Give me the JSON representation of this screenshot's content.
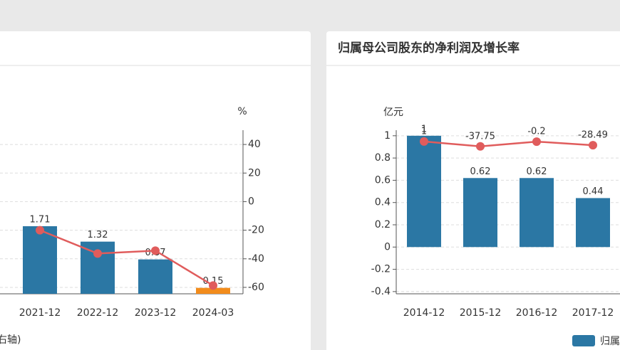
{
  "chart_data": [
    {
      "type": "bar_line",
      "y2label": "%",
      "categories": [
        "2021-12",
        "2022-12",
        "2023-12",
        "2024-03"
      ],
      "series": [
        {
          "color": "#2b77a4",
          "colors": [
            "#2b77a4",
            "#2b77a4",
            "#2b77a4",
            "#f28c1c"
          ],
          "values": [
            1.71,
            1.32,
            0.87,
            0.15
          ]
        },
        {
          "color": "#e05c5c",
          "axis": "y2",
          "values": [
            -20,
            -36.3,
            -34.3,
            -58.7
          ]
        }
      ],
      "ylim": [
        0,
        4.14
      ],
      "y2lim": [
        -64.5,
        50
      ],
      "y2ticks": [
        40,
        20,
        0,
        -20,
        -40,
        -60
      ],
      "grid": true,
      "footnote": "右轴)"
    },
    {
      "type": "bar_line",
      "title": "归属母公司股东的净利润及增长率",
      "ylabel": "亿元",
      "categories": [
        "2014-12",
        "2015-12",
        "2016-12",
        "2017-12"
      ],
      "series": [
        {
          "name": "归属母公司股东的净利润",
          "color": "#2b77a4",
          "values": [
            1,
            0.62,
            0.62,
            0.44
          ]
        },
        {
          "color": "#e05c5c",
          "axis": "y2",
          "values": [
            1,
            -37.75,
            -0.2,
            -28.49
          ]
        }
      ],
      "ylim": [
        -0.42,
        1.05
      ],
      "yticks": [
        1,
        0.8,
        0.6,
        0.4,
        0.2,
        0,
        -0.2,
        -0.4
      ],
      "y2lim": [
        -1200,
        90
      ],
      "grid": true
    }
  ]
}
